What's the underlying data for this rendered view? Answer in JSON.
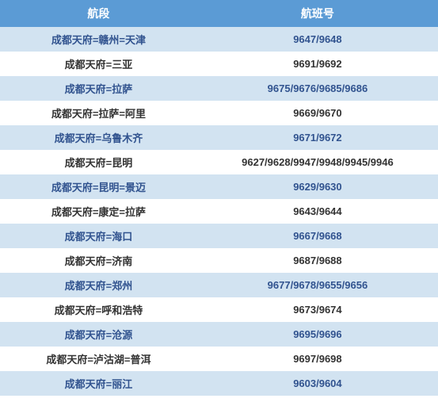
{
  "table": {
    "header_bg": "#5b9bd5",
    "header_color": "#ffffff",
    "odd_bg": "#d2e3f1",
    "even_bg": "#ffffff",
    "odd_text": "#31538f",
    "even_text": "#333333",
    "columns": [
      "航段",
      "航班号"
    ],
    "rows": [
      [
        "成都天府=赣州=天津",
        "9647/9648"
      ],
      [
        "成都天府=三亚",
        "9691/9692"
      ],
      [
        "成都天府=拉萨",
        "9675/9676/9685/9686"
      ],
      [
        "成都天府=拉萨=阿里",
        "9669/9670"
      ],
      [
        "成都天府=乌鲁木齐",
        "9671/9672"
      ],
      [
        "成都天府=昆明",
        "9627/9628/9947/9948/9945/9946"
      ],
      [
        "成都天府=昆明=景迈",
        "9629/9630"
      ],
      [
        "成都天府=康定=拉萨",
        "9643/9644"
      ],
      [
        "成都天府=海口",
        "9667/9668"
      ],
      [
        "成都天府=济南",
        "9687/9688"
      ],
      [
        "成都天府=郑州",
        "9677/9678/9655/9656"
      ],
      [
        "成都天府=呼和浩特",
        "9673/9674"
      ],
      [
        "成都天府=沧源",
        "9695/9696"
      ],
      [
        "成都天府=泸沽湖=普洱",
        "9697/9698"
      ],
      [
        "成都天府=丽江",
        "9603/9604"
      ]
    ]
  }
}
